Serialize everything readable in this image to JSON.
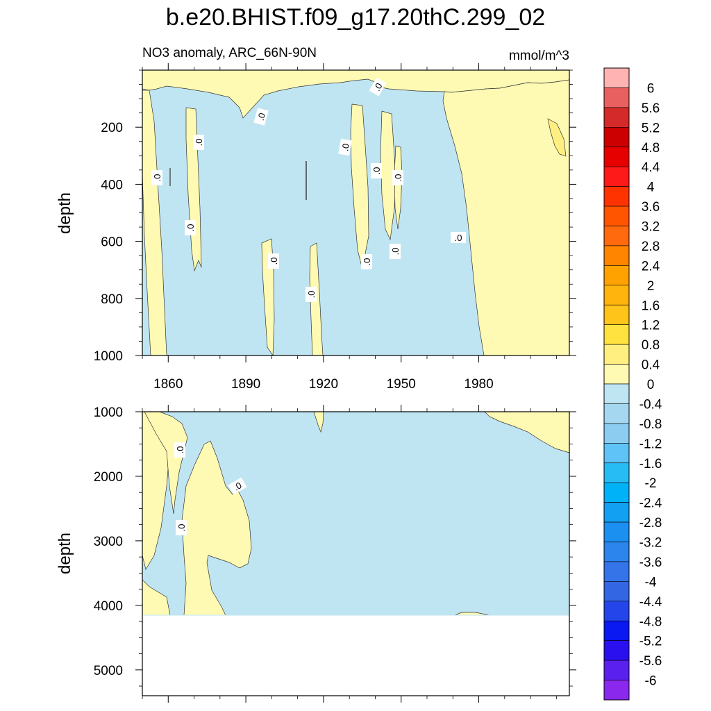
{
  "chart_data": {
    "type": "heatmap",
    "title": "b.e20.BHIST.f09_g17.20thC.299_02",
    "variable_label": "NO3 anomaly, ARC_66N-90N",
    "units": "mmol/m^3",
    "xlim": [
      1850,
      2015
    ],
    "x_ticks": [
      1860,
      1890,
      1920,
      1950,
      1980
    ],
    "x_tick_labels": [
      "1860",
      "1890",
      "1920",
      "1950",
      "1980"
    ],
    "contour_line_label": ".0",
    "upper_panel": {
      "ylabel": "depth",
      "ylim": [
        0,
        1000
      ],
      "y_ticks": [
        200,
        400,
        600,
        800,
        1000
      ],
      "y_tick_labels": [
        "200",
        "400",
        "600",
        "800",
        "1000"
      ]
    },
    "lower_panel": {
      "ylabel": "depth",
      "ylim": [
        1000,
        5400
      ],
      "y_ticks": [
        1000,
        2000,
        3000,
        4000,
        5000
      ],
      "y_tick_labels": [
        "1000",
        "2000",
        "3000",
        "4000",
        "5000"
      ],
      "data_bottom_depth": 4130
    },
    "colorbar": {
      "labels": [
        "6",
        "5.6",
        "5.2",
        "4.8",
        "4.4",
        "4",
        "3.6",
        "3.2",
        "2.8",
        "2.4",
        "2",
        "1.6",
        "1.2",
        "0.8",
        "0.4",
        "0",
        "-0.4",
        "-0.8",
        "-1.2",
        "-1.6",
        "-2",
        "-2.4",
        "-2.8",
        "-3.2",
        "-3.6",
        "-4",
        "-4.4",
        "-4.8",
        "-5.2",
        "-5.6",
        "-6"
      ],
      "colors": [
        "#ffb3b3",
        "#e86060",
        "#d42a2a",
        "#cc0000",
        "#e60000",
        "#ff1a1a",
        "#ff3300",
        "#ff5500",
        "#ff6a0e",
        "#ff8400",
        "#ffa200",
        "#ffb30d",
        "#ffc41a",
        "#ffe240",
        "#ffef80",
        "#fffab3",
        "#c0e5f2",
        "#a5d8f0",
        "#8cccf0",
        "#5fc3f7",
        "#27bdf4",
        "#00b2f8",
        "#12a0f2",
        "#1c90f0",
        "#2c84ed",
        "#3474e8",
        "#3366e2",
        "#2445ea",
        "#0a18f2",
        "#2a10ef",
        "#5a20ee",
        "#8a28ee"
      ]
    },
    "regions": {
      "negative_color": "#c0e5f2",
      "positive_color": "#fffab3",
      "strong_positive_color": "#ffef80"
    }
  }
}
